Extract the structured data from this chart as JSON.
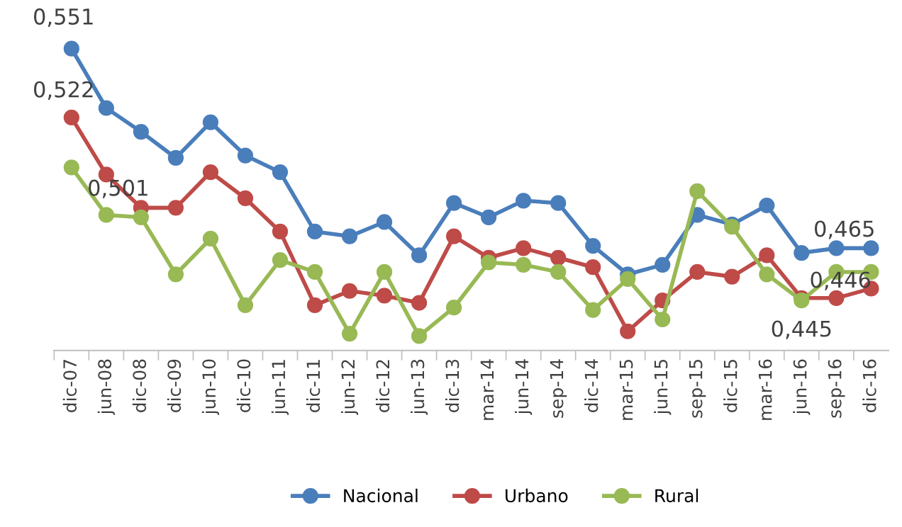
{
  "chart_data": {
    "type": "line",
    "categories": [
      "dic-07",
      "jun-08",
      "dic-08",
      "dic-09",
      "jun-10",
      "dic-10",
      "jun-11",
      "dic-11",
      "jun-12",
      "dic-12",
      "jun-13",
      "dic-13",
      "mar-14",
      "jun-14",
      "sep-14",
      "dic-14",
      "mar-15",
      "jun-15",
      "sep-15",
      "dic-15",
      "mar-16",
      "jun-16",
      "sep-16",
      "dic-16"
    ],
    "series": [
      {
        "name": "Nacional",
        "color": "#4a7ebb",
        "values": [
          0.551,
          0.526,
          0.516,
          0.505,
          0.52,
          0.506,
          0.499,
          0.474,
          0.472,
          0.478,
          0.464,
          0.486,
          0.48,
          0.487,
          0.486,
          0.468,
          0.456,
          0.46,
          0.481,
          0.477,
          0.485,
          0.465,
          0.467,
          0.467
        ],
        "value_labels": [
          "0,551",
          null,
          null,
          null,
          null,
          null,
          null,
          null,
          null,
          null,
          null,
          null,
          null,
          null,
          null,
          null,
          null,
          null,
          null,
          null,
          null,
          "0,465",
          null,
          null
        ]
      },
      {
        "name": "Urbano",
        "color": "#be4b48",
        "values": [
          0.522,
          0.498,
          0.484,
          0.484,
          0.499,
          0.488,
          0.474,
          0.443,
          0.449,
          0.447,
          0.444,
          0.472,
          0.463,
          0.467,
          0.463,
          0.459,
          0.432,
          0.445,
          0.457,
          0.455,
          0.464,
          0.446,
          0.446,
          0.45
        ],
        "value_labels": [
          "0,522",
          null,
          null,
          null,
          null,
          null,
          null,
          null,
          null,
          null,
          null,
          null,
          null,
          null,
          null,
          null,
          null,
          null,
          null,
          null,
          null,
          "0,446",
          null,
          null
        ]
      },
      {
        "name": "Rural",
        "color": "#98b954",
        "values": [
          0.501,
          0.481,
          0.48,
          0.456,
          0.471,
          0.443,
          0.462,
          0.457,
          0.431,
          0.457,
          0.43,
          0.442,
          0.461,
          0.46,
          0.457,
          0.441,
          0.454,
          0.437,
          0.491,
          0.476,
          0.456,
          0.445,
          0.457,
          0.457
        ],
        "value_labels": [
          "0,501",
          null,
          null,
          null,
          null,
          null,
          null,
          null,
          null,
          null,
          null,
          null,
          null,
          null,
          null,
          null,
          null,
          null,
          null,
          null,
          null,
          "0,445",
          null,
          null
        ]
      }
    ],
    "marker": "circle",
    "line_style": "solid",
    "legend": "bottom"
  }
}
